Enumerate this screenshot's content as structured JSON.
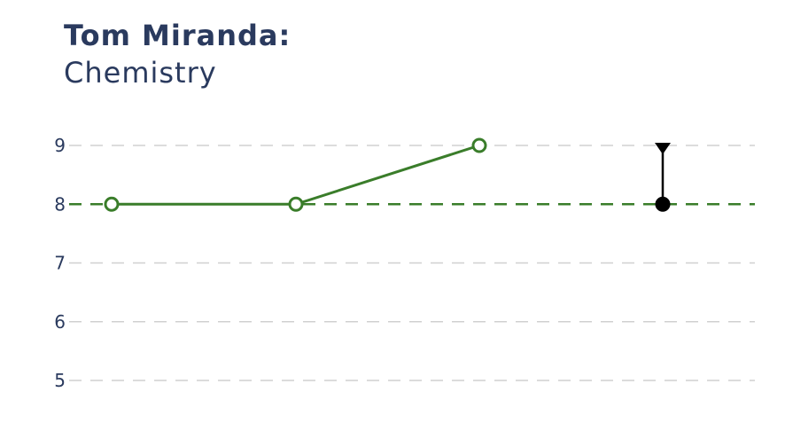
{
  "title": "Tom Miranda:",
  "subtitle": "Chemistry",
  "chart_data": {
    "type": "line",
    "title": "Tom Miranda:",
    "subtitle": "Chemistry",
    "xlabel": "",
    "ylabel": "",
    "ylim": [
      5,
      9
    ],
    "yticks": [
      5,
      6,
      7,
      8,
      9
    ],
    "grid": true,
    "series": [
      {
        "color": "#3a7d2a",
        "x": [
          1,
          2,
          3
        ],
        "values": [
          8,
          8,
          9
        ],
        "marker": "open-circle"
      }
    ],
    "reference_line": {
      "value": 8,
      "color": "#3a7d2a",
      "style": "dashed"
    },
    "target_marker": {
      "x": 4,
      "from": 8,
      "to": 9,
      "color": "#000000"
    }
  }
}
